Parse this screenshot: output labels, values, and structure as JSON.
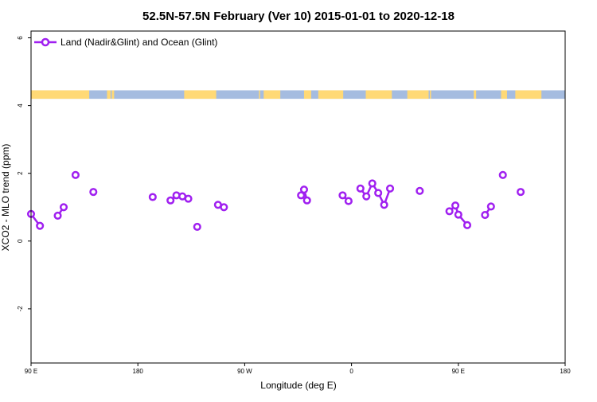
{
  "colors": {
    "series": "#a020f0",
    "land": "#ffd976",
    "ocean": "#a5bce0",
    "axis": "#000000"
  },
  "chart_data": {
    "type": "line",
    "title": "52.5N-57.5N February (Ver 10)   2015-01-01 to 2020-12-18",
    "xlabel": "Longitude (deg E)",
    "ylabel": "XCO2 - MLO trend (ppm)",
    "xlim": [
      90,
      540
    ],
    "ylim": [
      -3.6,
      6.2
    ],
    "x_ticks": [
      {
        "value": 90,
        "label": "90 E"
      },
      {
        "value": 180,
        "label": "180"
      },
      {
        "value": 270,
        "label": "90 W"
      },
      {
        "value": 360,
        "label": "0"
      },
      {
        "value": 450,
        "label": "90 E"
      },
      {
        "value": 540,
        "label": "180"
      }
    ],
    "y_ticks": [
      {
        "value": -2,
        "label": "-2"
      },
      {
        "value": 0,
        "label": "0"
      },
      {
        "value": 2,
        "label": "2"
      },
      {
        "value": 4,
        "label": "4"
      },
      {
        "value": 6,
        "label": "6"
      }
    ],
    "legend": {
      "position": "top-left"
    },
    "land_ocean_band": {
      "y_range": [
        4.2,
        4.45
      ],
      "land_longitudes": [
        [
          90,
          139
        ],
        [
          154,
          157
        ],
        [
          158,
          160
        ],
        [
          219,
          246
        ],
        [
          282,
          283
        ],
        [
          286,
          300
        ],
        [
          326,
          320
        ],
        [
          332,
          353
        ],
        [
          372,
          394
        ],
        [
          407,
          425
        ],
        [
          426,
          427
        ],
        [
          463,
          465
        ],
        [
          486,
          491
        ],
        [
          498,
          520
        ]
      ]
    },
    "series": [
      {
        "name": "Land (Nadir&Glint) and Ocean (Glint)",
        "segments": [
          {
            "x": [
              90,
              97.5
            ],
            "y": [
              0.8,
              0.45
            ]
          },
          {
            "x": [
              112.5,
              117.5
            ],
            "y": [
              0.75,
              1.0
            ]
          },
          {
            "x": [
              127.5
            ],
            "y": [
              1.95
            ]
          },
          {
            "x": [
              142.5
            ],
            "y": [
              1.45
            ]
          },
          {
            "x": [
              192.5
            ],
            "y": [
              1.3
            ]
          },
          {
            "x": [
              207.5,
              212.5,
              217.5,
              222.5
            ],
            "y": [
              1.2,
              1.35,
              1.32,
              1.25
            ]
          },
          {
            "x": [
              230
            ],
            "y": [
              0.42
            ]
          },
          {
            "x": [
              247.5,
              252.5
            ],
            "y": [
              1.07,
              1.0
            ]
          },
          {
            "x": [
              317.5,
              320,
              322.5
            ],
            "y": [
              1.35,
              1.52,
              1.2
            ]
          },
          {
            "x": [
              352.5,
              357.5
            ],
            "y": [
              1.35,
              1.18
            ]
          },
          {
            "x": [
              367.5,
              372.5,
              377.5,
              382.5,
              387.5,
              392.5
            ],
            "y": [
              1.55,
              1.32,
              1.7,
              1.42,
              1.07,
              1.55
            ]
          },
          {
            "x": [
              417.5
            ],
            "y": [
              1.48
            ]
          },
          {
            "x": [
              442.5,
              447.5,
              450,
              457.5
            ],
            "y": [
              0.88,
              1.05,
              0.78,
              0.47
            ]
          },
          {
            "x": [
              472.5,
              477.5
            ],
            "y": [
              0.77,
              1.02
            ]
          },
          {
            "x": [
              487.5
            ],
            "y": [
              1.95
            ]
          },
          {
            "x": [
              502.5
            ],
            "y": [
              1.45
            ]
          }
        ]
      }
    ]
  }
}
